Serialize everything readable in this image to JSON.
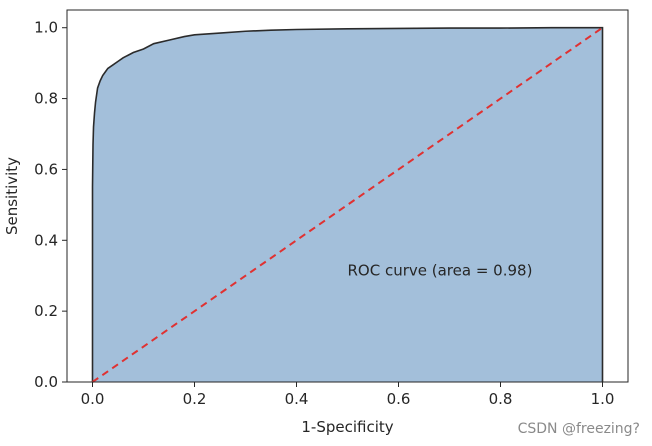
{
  "chart_data": {
    "type": "area",
    "title": "",
    "xlabel": "1-Specificity",
    "ylabel": "Sensitivity",
    "xlim": [
      0,
      1
    ],
    "ylim": [
      0,
      1
    ],
    "x_ticks": [
      "0.0",
      "0.2",
      "0.4",
      "0.6",
      "0.8",
      "1.0"
    ],
    "y_ticks": [
      "0.0",
      "0.2",
      "0.4",
      "0.6",
      "0.8",
      "1.0"
    ],
    "grid": false,
    "legend": "none",
    "series": [
      {
        "kind": "roc_curve",
        "fill": true,
        "x": [
          0.0,
          0.0,
          0.001,
          0.002,
          0.004,
          0.006,
          0.008,
          0.01,
          0.015,
          0.02,
          0.025,
          0.03,
          0.04,
          0.05,
          0.06,
          0.08,
          0.1,
          0.12,
          0.15,
          0.18,
          0.2,
          0.25,
          0.3,
          0.35,
          0.4,
          0.5,
          0.6,
          0.7,
          0.8,
          0.9,
          1.0
        ],
        "y": [
          0.0,
          0.55,
          0.67,
          0.72,
          0.76,
          0.79,
          0.81,
          0.83,
          0.85,
          0.865,
          0.875,
          0.885,
          0.895,
          0.905,
          0.915,
          0.93,
          0.94,
          0.955,
          0.965,
          0.975,
          0.98,
          0.985,
          0.99,
          0.993,
          0.995,
          0.997,
          0.998,
          0.999,
          0.999,
          1.0,
          1.0
        ]
      },
      {
        "kind": "chance_line",
        "style": "dashed",
        "x": [
          0.0,
          1.0
        ],
        "y": [
          0.0,
          1.0
        ]
      }
    ],
    "annotations": [
      {
        "text": "ROC curve (area = 0.98)",
        "x": 0.5,
        "y": 0.3
      }
    ],
    "colors": {
      "fill": "#a3bfda",
      "curve": "#2b2b2b",
      "chance_line": "#e03131",
      "axes": "#262626"
    }
  },
  "watermark": "CSDN @freezing?"
}
